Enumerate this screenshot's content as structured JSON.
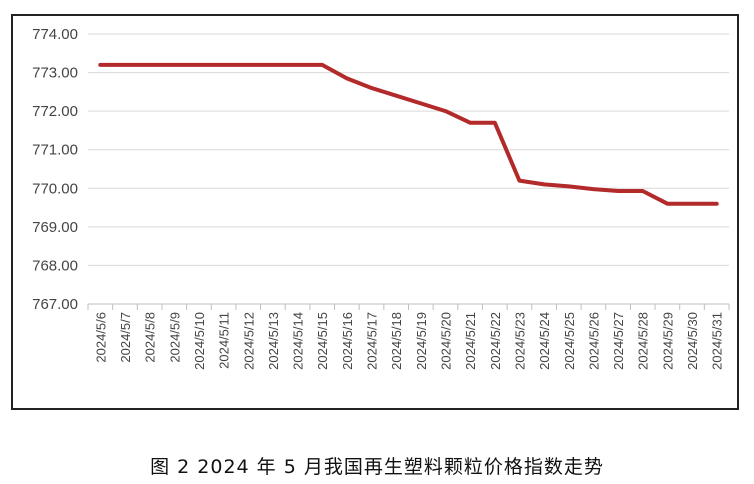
{
  "caption": "图 2  2024 年 5 月我国再生塑料颗粒价格指数走势",
  "chart_data": {
    "type": "line",
    "categories": [
      "2024/5/6",
      "2024/5/7",
      "2024/5/8",
      "2024/5/9",
      "2024/5/10",
      "2024/5/11",
      "2024/5/12",
      "2024/5/13",
      "2024/5/14",
      "2024/5/15",
      "2024/5/16",
      "2024/5/17",
      "2024/5/18",
      "2024/5/19",
      "2024/5/20",
      "2024/5/21",
      "2024/5/22",
      "2024/5/23",
      "2024/5/24",
      "2024/5/25",
      "2024/5/26",
      "2024/5/27",
      "2024/5/28",
      "2024/5/29",
      "2024/5/30",
      "2024/5/31"
    ],
    "series": [
      {
        "values": [
          773.2,
          773.2,
          773.2,
          773.2,
          773.2,
          773.2,
          773.2,
          773.2,
          773.2,
          773.2,
          772.85,
          772.6,
          772.4,
          772.2,
          772.0,
          771.7,
          771.7,
          770.2,
          770.1,
          770.05,
          769.98,
          769.93,
          769.93,
          769.6,
          769.6,
          769.6
        ]
      }
    ],
    "y_ticks": [
      "767.00",
      "768.00",
      "769.00",
      "770.00",
      "771.00",
      "772.00",
      "773.00",
      "774.00"
    ],
    "ylim": [
      767,
      774
    ],
    "grid": true,
    "line_color": "#b22a2a",
    "title": "",
    "xlabel": "",
    "ylabel": ""
  }
}
